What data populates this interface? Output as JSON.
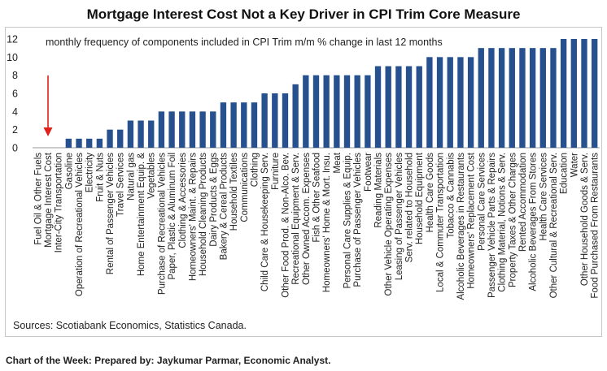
{
  "chart_data": {
    "type": "bar",
    "title": "Mortgage Interest Cost Not a Key Driver in CPI Trim Core Measure",
    "subtitle": "monthly frequency of components included in CPI Trim m/m % change in last 12 months",
    "ylim": [
      0,
      12
    ],
    "yticks": [
      0,
      2,
      4,
      6,
      8,
      10,
      12
    ],
    "grid": false,
    "bar_color": "#27508f",
    "arrow_color": "#e0211b",
    "arrow_target": "Mortgage Interest Cost",
    "categories": [
      "Fuel Oil & Other Fuels",
      "Mortgage Interest Cost",
      "Inter-City Transportation",
      "Gasoline",
      "Operation of Recreational Vehicles",
      "Electricity",
      "Fruit & Nuts",
      "Rental of Passenger Vehicles",
      "Travel Services",
      "Natural gas",
      "Home Entertainment Equip. &",
      "Vegetables",
      "Purchase of Recreational Vehicles",
      "Paper, Plastic & Aluminum Foil",
      "Clothing & Accessories",
      "Homeowners' Maint. & Repairs",
      "Household Cleaning Products",
      "Dairy Products & Eggs",
      "Bakery & Cereal Products",
      "Household Textiles",
      "Communications",
      "Clothing",
      "Child Care & Housekeeping Serv.",
      "Furniture",
      "Other Food Prod. & Non-Alco. Bev.",
      "Recreational Equipment & Serv.",
      "Other Owned Accom. Expenses",
      "Fish & Other Seafood",
      "Homeowners' Home & Mort. Insu.",
      "Meat",
      "Personal Care Supplies & Equip.",
      "Purchase of Passenger Vehicles",
      "Footwear",
      "Reading Materials",
      "Other Vehicle Operating Expenses",
      "Leasing of Passenger Vehicles",
      "Serv. related to Household",
      "Household Equipment",
      "Health Care Goods",
      "Local & Commuter Transportation",
      "Tobacco & Cannabis",
      "Alcoholic Beverages in Restaurants",
      "Homeowners' Replacement Cost",
      "Personal Care Services",
      "Passenger Vehicle Parts & Repairs",
      "Clothing Material, Notions & Serv.",
      "Property Taxes & Other Charges",
      "Rented Accommodation",
      "Alcoholic Beverages From Stores",
      "Health Care Services",
      "Other Cultural & Recreational Serv.",
      "Education",
      "Water",
      "Other Household Goods & Serv.",
      "Food Purchased From Restaurants"
    ],
    "values": [
      0,
      0,
      0,
      1,
      1,
      1,
      1,
      2,
      2,
      3,
      3,
      3,
      4,
      4,
      4,
      4,
      4,
      4,
      5,
      5,
      5,
      5,
      6,
      6,
      6,
      7,
      8,
      8,
      8,
      8,
      8,
      8,
      8,
      9,
      9,
      9,
      9,
      9,
      10,
      10,
      10,
      10,
      10,
      11,
      11,
      11,
      11,
      11,
      11,
      11,
      11,
      12,
      12,
      12,
      12
    ]
  },
  "source": "Sources: Scotiabank Economics, Statistics Canada.",
  "footer": "Chart of the Week: Prepared by: Jaykumar Parmar, Economic Analyst."
}
